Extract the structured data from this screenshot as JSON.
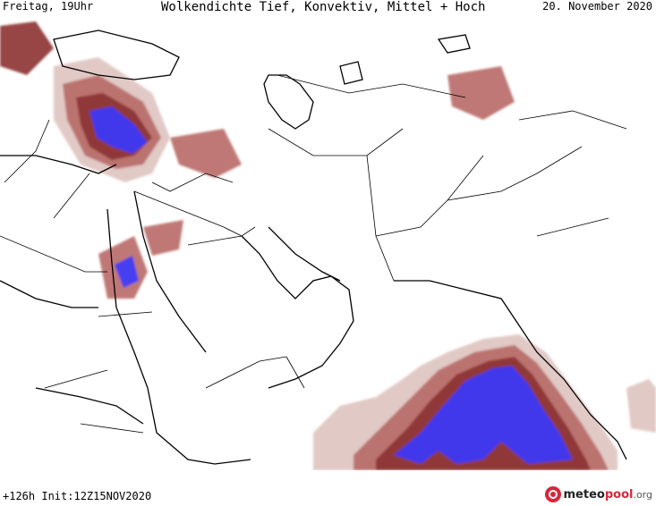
{
  "header": {
    "left": "Freitag, 19Uhr",
    "center": "Wolkendichte  Tief, Konvektiv, Mittel + Hoch",
    "right": "20. November 2020"
  },
  "footer": {
    "run_info": "+126h Init:12Z15NOV2020",
    "logo": {
      "name": "meteo",
      "accent": "pool",
      "suffix": ".org"
    }
  },
  "legend_colors": {
    "light": "#dcc0bc",
    "medium": "#b86a66",
    "dense": "#8c3232",
    "convective": "#3a3aff"
  },
  "icons": {
    "logo": "meteopool-logo-icon"
  }
}
